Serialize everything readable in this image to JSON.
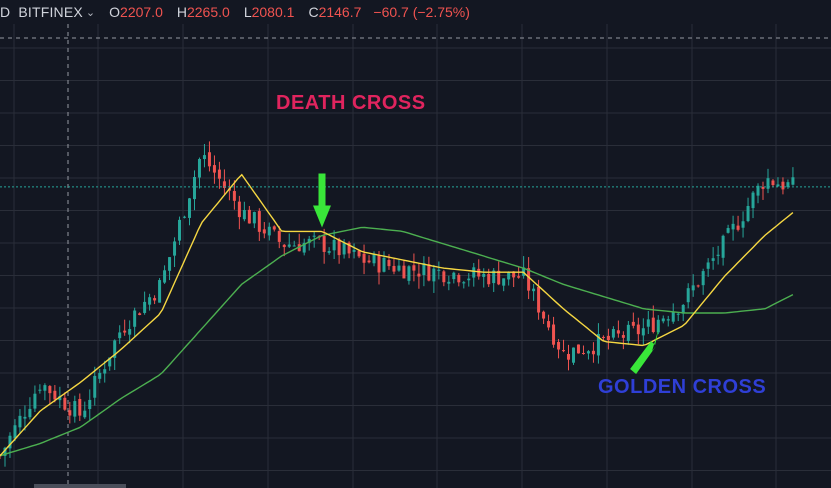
{
  "header": {
    "interval": "D",
    "exchange": "BITFINEX",
    "open_label": "O",
    "open": "2207.0",
    "high_label": "H",
    "high": "2265.0",
    "low_label": "L",
    "low": "2080.1",
    "close_label": "C",
    "close": "2146.7",
    "change": "−60.7 (−2.75%)"
  },
  "annotations": {
    "death_cross": "DEATH CROSS",
    "golden_cross": "GOLDEN CROSS"
  },
  "colors": {
    "background": "#131722",
    "grid": "#2a2e39",
    "candle_up": "#26a69a",
    "candle_down": "#ef5350",
    "ma_fast": "#f5d742",
    "ma_slow": "#4caf50",
    "arrow": "#39e639",
    "death_text": "#e0245e",
    "golden_text": "#2f3fd6",
    "last_price_line": "#26a69a"
  },
  "chart_data": {
    "type": "candlestick",
    "title": "",
    "xlabel": "",
    "ylabel": "",
    "ylim": [
      0,
      100
    ],
    "grid": true,
    "series": [
      {
        "kind": "price",
        "x": [
          0,
          5,
          10,
          15,
          20,
          25,
          30,
          35,
          40,
          45,
          50,
          55,
          60,
          65,
          70,
          75,
          80,
          85,
          90,
          95,
          100
        ],
        "values": [
          3,
          21,
          13,
          34,
          45,
          77,
          63,
          55,
          55,
          51,
          49,
          48,
          47,
          47,
          28,
          31,
          34,
          41,
          55,
          71,
          68
        ]
      },
      {
        "kind": "moving_average_fast",
        "x": [
          0,
          5,
          10,
          15,
          20,
          25,
          30,
          35,
          40,
          45,
          50,
          55,
          60,
          65,
          70,
          75,
          80,
          85,
          90,
          95,
          100
        ],
        "values": [
          3,
          14,
          21,
          29,
          38,
          60,
          72,
          58,
          58,
          53,
          51,
          49,
          48,
          48,
          39,
          31,
          30,
          35,
          47,
          57,
          65
        ]
      },
      {
        "kind": "moving_average_slow",
        "x": [
          0,
          5,
          10,
          15,
          20,
          25,
          30,
          35,
          40,
          45,
          50,
          55,
          60,
          65,
          70,
          75,
          80,
          85,
          90,
          95,
          100
        ],
        "values": [
          3,
          6,
          10,
          17,
          23,
          34,
          45,
          52,
          57,
          59,
          58,
          55,
          52,
          49,
          45,
          42,
          39,
          38,
          38,
          39,
          44
        ]
      }
    ],
    "crosses": [
      {
        "label": "DEATH CROSS",
        "x": 40,
        "y": 57,
        "direction": "down"
      },
      {
        "label": "GOLDEN CROSS",
        "x": 82,
        "y": 37,
        "direction": "up"
      }
    ]
  }
}
